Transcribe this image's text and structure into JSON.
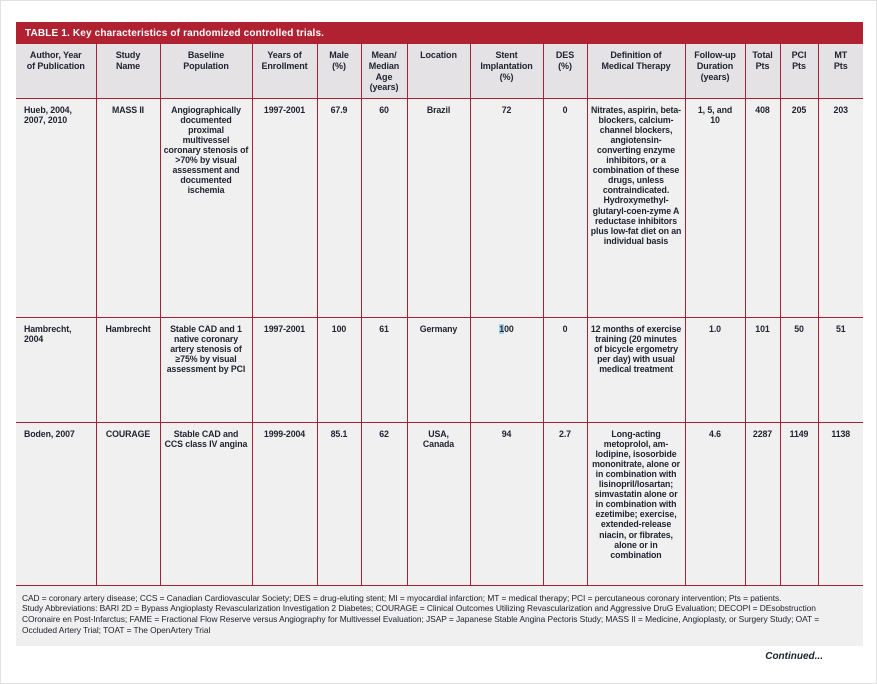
{
  "title": {
    "label": "TABLE 1.",
    "text": "Key characteristics of randomized controlled trials."
  },
  "colors": {
    "accent_red": "#b02132",
    "border_red": "#a92134",
    "header_bg": "#e4e2e5",
    "body_bg": "#f1f0f1",
    "text": "#202531",
    "selection_highlight": "#a6d2e9"
  },
  "table": {
    "headers": [
      "Author, Year\nof Publication",
      "Study\nName",
      "Baseline\nPopulation",
      "Years of\nEnrollment",
      "Male\n(%)",
      "Mean/\nMedian\nAge\n(years)",
      "Location",
      "Stent\nImplantation\n(%)",
      "DES\n(%)",
      "Definition of\nMedical Therapy",
      "Follow-up\nDuration\n(years)",
      "Total\nPts",
      "PCI\nPts",
      "MT\nPts"
    ],
    "rows": [
      {
        "cells": [
          "Hueb, 2004,\n2007, 2010",
          "MASS II",
          "Angiographically documented proximal multivessel coronary stenosis of >70% by visual assessment and documented ischemia",
          "1997-2001",
          "67.9",
          "60",
          "Brazil",
          "72",
          "0",
          "Nitrates, aspirin, beta-blockers, calcium-channel blockers, angiotensin-converting enzyme inhibitors, or a combination of these drugs, unless contraindicated. Hydroxymethyl-glutaryl-coen-zyme A reductase inhibitors plus low-fat diet on an individual basis",
          "1, 5, and\n10",
          "408",
          "205",
          "203"
        ]
      },
      {
        "cells": [
          "Hambrecht,\n2004",
          "Hambrecht",
          "Stable CAD and 1 native coronary artery stenosis of ≥75% by visual assessment by PCI",
          "1997-2001",
          "100",
          "61",
          "Germany",
          "100",
          "0",
          "12 months of exercise training (20 minutes of bicycle ergometry per day) with usual medical treatment",
          "1.0",
          "101",
          "50",
          "51"
        ],
        "stent_selection": {
          "highlighted": "1",
          "rest": "00"
        }
      },
      {
        "cells": [
          "Boden, 2007",
          "COURAGE",
          "Stable CAD and CCS class IV angina",
          "1999-2004",
          "85.1",
          "62",
          "USA,\nCanada",
          "94",
          "2.7",
          "Long-acting metoprolol, am-lodipine, isosorbide mononitrate, alone or in combination with lisinopril/losartan; simvastatin alone or in combination with ezetimibe; exercise, extended-release niacin, or fibrates, alone or in combination",
          "4.6",
          "2287",
          "1149",
          "1138"
        ]
      }
    ]
  },
  "footnotes": {
    "abbreviations": "CAD = coronary artery disease; CCS = Canadian Cardiovascular Society; DES = drug-eluting stent; MI = myocardial infarction; MT = medical therapy; PCI = percutaneous coronary intervention; Pts = patients.",
    "study_abbreviations": "Study Abbreviations: BARI 2D = Bypass Angioplasty Revascularization Investigation 2 Diabetes; COURAGE = Clinical Outcomes Utilizing Revascularization and Aggressive DruG Evaluation; DECOPI = DEsobstruction COronaire en Post-Infarctus; FAME = Fractional Flow Reserve versus Angiography for Multivessel Evaluation; JSAP = Japanese Stable Angina Pectoris Study; MASS II = Medicine, Angioplasty, or Surgery Study; OAT = Occluded Artery Trial; TOAT = The OpenArtery Trial"
  },
  "continued": "Continued..."
}
